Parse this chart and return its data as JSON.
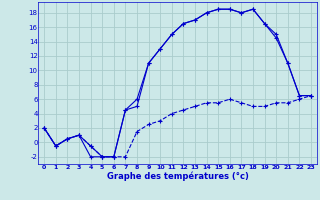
{
  "title": "Graphe des températures (°c)",
  "background_color": "#cce8e8",
  "grid_color": "#aacccc",
  "line_color": "#0000cc",
  "xlim": [
    -0.5,
    23.5
  ],
  "ylim": [
    -3,
    19.5
  ],
  "xticks": [
    0,
    1,
    2,
    3,
    4,
    5,
    6,
    7,
    8,
    9,
    10,
    11,
    12,
    13,
    14,
    15,
    16,
    17,
    18,
    19,
    20,
    21,
    22,
    23
  ],
  "yticks": [
    -2,
    0,
    2,
    4,
    6,
    8,
    10,
    12,
    14,
    16,
    18
  ],
  "series1_x": [
    0,
    1,
    2,
    3,
    4,
    5,
    6,
    7,
    8,
    9,
    10,
    11,
    12,
    13,
    14,
    15,
    16,
    17,
    18,
    19,
    20,
    21,
    22,
    23
  ],
  "series1_y": [
    2,
    -0.5,
    0.5,
    1,
    -0.5,
    -2,
    -2,
    -2,
    1.5,
    2.5,
    3,
    4,
    4.5,
    5,
    5.5,
    5.5,
    6,
    5.5,
    5,
    5,
    5.5,
    5.5,
    6,
    6.5
  ],
  "series2_x": [
    0,
    1,
    2,
    3,
    4,
    5,
    6,
    7,
    8,
    9,
    10,
    11,
    12,
    13,
    14,
    15,
    16,
    17,
    18,
    19,
    20,
    21,
    22,
    23
  ],
  "series2_y": [
    2,
    -0.5,
    0.5,
    1,
    -0.5,
    -2,
    -2,
    4.5,
    6,
    11,
    13,
    15,
    16.5,
    17,
    18,
    18.5,
    18.5,
    18,
    18.5,
    16.5,
    15,
    11,
    6.5,
    6.5
  ],
  "series3_x": [
    0,
    1,
    2,
    3,
    4,
    5,
    6,
    7,
    8,
    9,
    10,
    11,
    12,
    13,
    14,
    15,
    16,
    17,
    18,
    19,
    20,
    21,
    22,
    23
  ],
  "series3_y": [
    2,
    -0.5,
    0.5,
    1,
    -2,
    -2,
    -2,
    4.5,
    5,
    11,
    13,
    15,
    16.5,
    17,
    18,
    18.5,
    18.5,
    18,
    18.5,
    16.5,
    14.5,
    11,
    6.5,
    6.5
  ]
}
